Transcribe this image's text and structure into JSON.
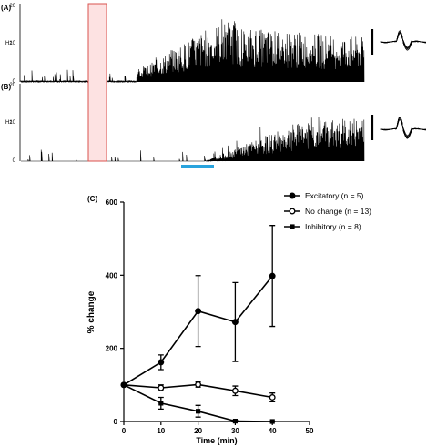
{
  "panels": {
    "a_label": "(A)",
    "b_label": "(B)",
    "c_label": "(C)"
  },
  "trace_axes": {
    "unit": "Hz",
    "ticks": [
      "20",
      "10",
      "0"
    ],
    "ylim": [
      0,
      20
    ]
  },
  "colors": {
    "trace": "#000000",
    "stim_box": "#d9534f",
    "stim_box_fill": "#fde2e2",
    "drug_bar": "#29a3dd"
  },
  "chart_data": {
    "type": "line",
    "xlabel": "Time (min)",
    "ylabel": "% change",
    "xlim": [
      0,
      50
    ],
    "ylim": [
      0,
      600
    ],
    "xticks": [
      "0",
      "10",
      "20",
      "30",
      "40",
      "50"
    ],
    "yticks": [
      "0",
      "200",
      "400",
      "600"
    ],
    "legend_position": "top-right",
    "series": [
      {
        "name": "Excitatory (n = 5)",
        "marker": "filled-circle",
        "x": [
          0,
          10,
          20,
          30,
          40
        ],
        "y": [
          100,
          162,
          302,
          272,
          398
        ],
        "err": [
          0,
          20,
          97,
          108,
          138
        ]
      },
      {
        "name": "No change (n = 13)",
        "marker": "open-circle",
        "x": [
          0,
          10,
          20,
          30,
          40
        ],
        "y": [
          100,
          92,
          101,
          84,
          66
        ],
        "err": [
          0,
          8,
          7,
          13,
          12
        ]
      },
      {
        "name": "Inhibitory (n = 8)",
        "marker": "filled-square",
        "x": [
          0,
          10,
          20,
          30,
          40
        ],
        "y": [
          100,
          50,
          28,
          1,
          0
        ],
        "err": [
          0,
          16,
          16,
          2,
          1
        ]
      }
    ]
  }
}
